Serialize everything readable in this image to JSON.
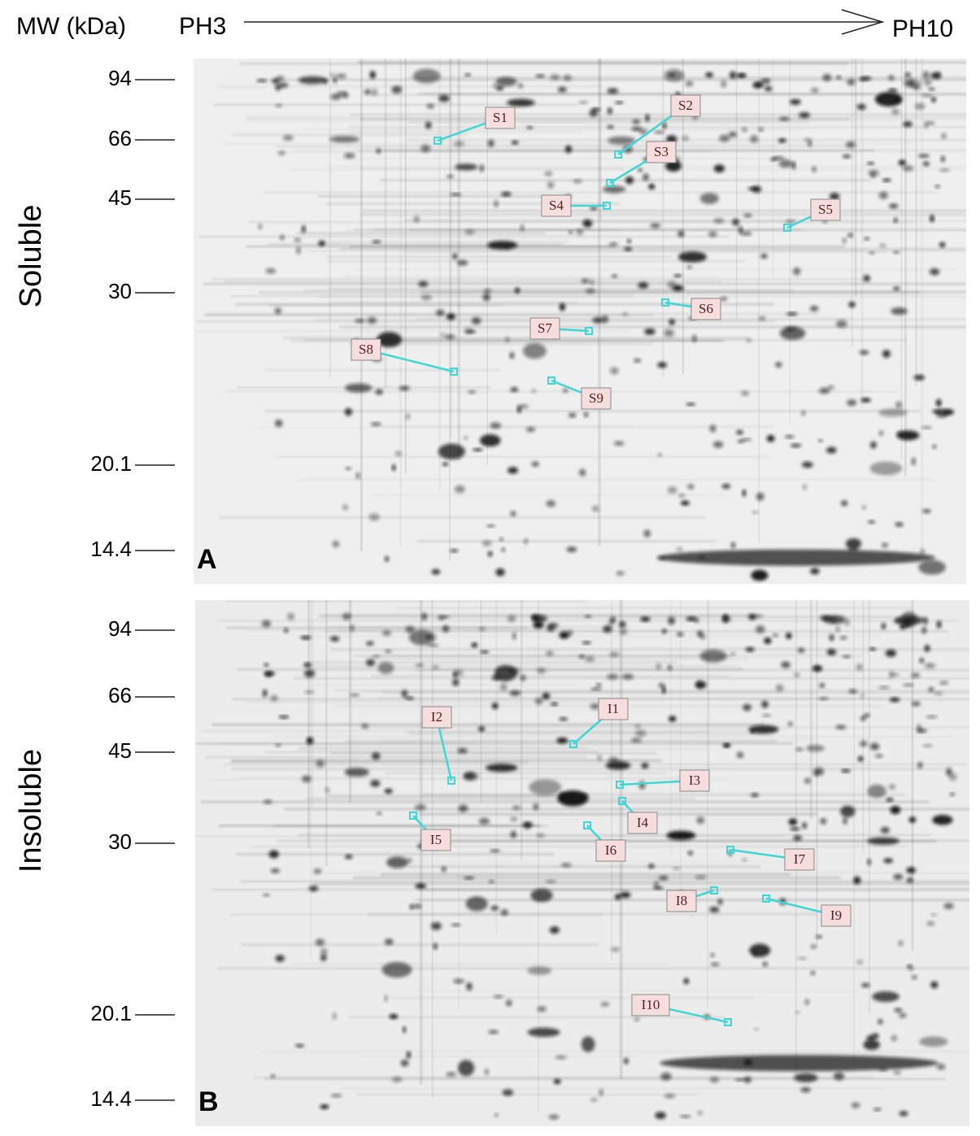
{
  "header": {
    "y_axis_label": "MW (kDa)",
    "ph_start": "PH3",
    "ph_end": "PH10"
  },
  "panels": [
    {
      "title": "Soluble",
      "letter": "A",
      "mw_ticks": [
        "94",
        "66",
        "45",
        "30",
        "20.1",
        "14.4"
      ],
      "spots": [
        "S1",
        "S2",
        "S3",
        "S4",
        "S5",
        "S6",
        "S7",
        "S8",
        "S9"
      ]
    },
    {
      "title": "Insoluble",
      "letter": "B",
      "mw_ticks": [
        "94",
        "66",
        "45",
        "30",
        "20.1",
        "14.4"
      ],
      "spots": [
        "I1",
        "I2",
        "I3",
        "I4",
        "I5",
        "I6",
        "I7",
        "I8",
        "I9",
        "I10"
      ]
    }
  ]
}
